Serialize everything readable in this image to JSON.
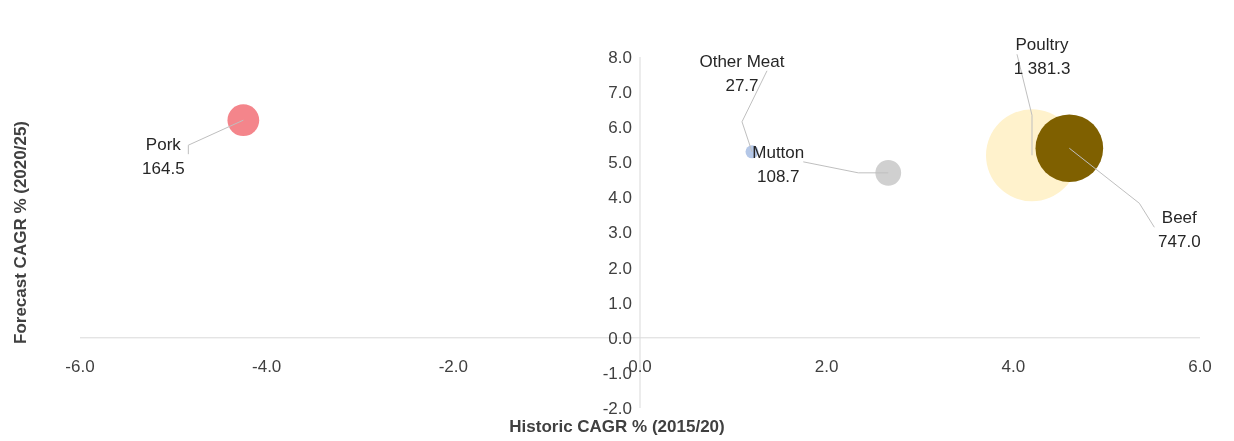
{
  "chart_data": {
    "type": "bubble",
    "xlabel": "Historic CAGR % (2015/20)",
    "ylabel": "Forecast CAGR % (2020/25)",
    "xlim": [
      -6,
      6
    ],
    "xticks": [
      {
        "value": -6,
        "label": "-6.0"
      },
      {
        "value": -4,
        "label": "-4.0"
      },
      {
        "value": -2,
        "label": "-2.0"
      },
      {
        "value": 0,
        "label": "0.0"
      },
      {
        "value": 2,
        "label": "2.0"
      },
      {
        "value": 4,
        "label": "4.0"
      },
      {
        "value": 6,
        "label": "6.0"
      }
    ],
    "ylim": [
      -2,
      8
    ],
    "yticks": [
      {
        "value": -2,
        "label": "-2.0"
      },
      {
        "value": -1,
        "label": "-1.0"
      },
      {
        "value": 0,
        "label": "0.0"
      },
      {
        "value": 1,
        "label": "1.0"
      },
      {
        "value": 2,
        "label": "2.0"
      },
      {
        "value": 3,
        "label": "3.0"
      },
      {
        "value": 4,
        "label": "4.0"
      },
      {
        "value": 5,
        "label": "5.0"
      },
      {
        "value": 6,
        "label": "6.0"
      },
      {
        "value": 7,
        "label": "7.0"
      },
      {
        "value": 8,
        "label": "8.0"
      }
    ],
    "grid": false,
    "series": [
      {
        "name": "Pork",
        "color": "#f4858b",
        "x": [
          -4.25
        ],
        "values": [
          6.2
        ],
        "sizes": [
          164.5
        ],
        "value_labels": [
          "164.5"
        ]
      },
      {
        "name": "Other Meat",
        "color": "#b4c7e7",
        "x": [
          1.2
        ],
        "values": [
          5.3
        ],
        "sizes": [
          27.7
        ],
        "value_labels": [
          "27.7"
        ]
      },
      {
        "name": "Mutton",
        "color": "#d0d0d0",
        "x": [
          2.66
        ],
        "values": [
          4.7
        ],
        "sizes": [
          108.7
        ],
        "value_labels": [
          "108.7"
        ]
      },
      {
        "name": "Poultry",
        "color": "#fff2cc",
        "x": [
          4.2
        ],
        "values": [
          5.2
        ],
        "sizes": [
          1381.3
        ],
        "value_labels": [
          "1 381.3"
        ]
      },
      {
        "name": "Beef",
        "color": "#7f6000",
        "x": [
          4.6
        ],
        "values": [
          5.4
        ],
        "sizes": [
          747
        ],
        "value_labels": [
          "747.0"
        ]
      }
    ]
  }
}
